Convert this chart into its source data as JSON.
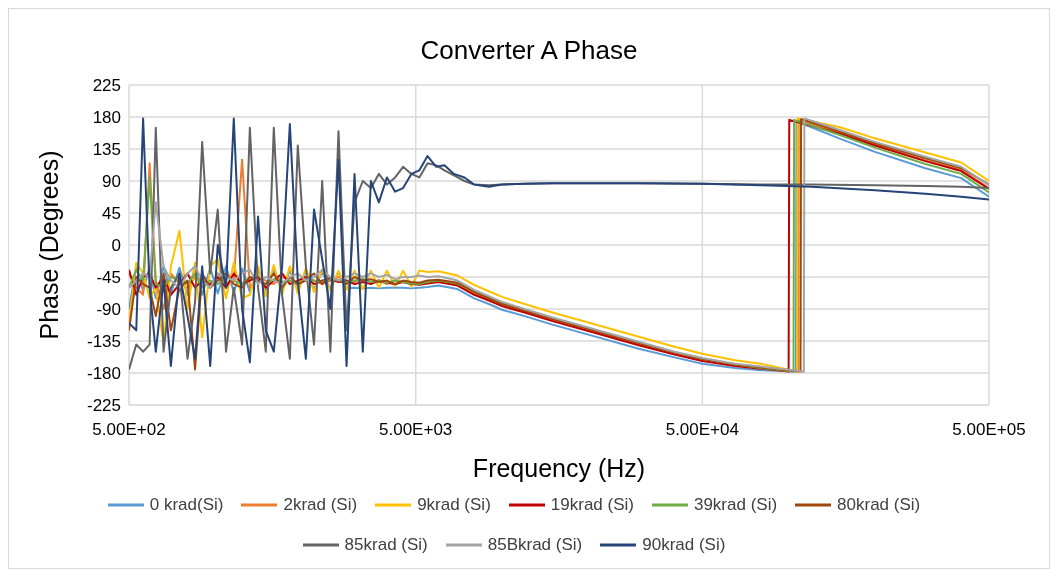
{
  "chart_data": {
    "type": "line",
    "title": "Converter A Phase",
    "xlabel": "Frequency (Hz)",
    "ylabel": "Phase (Degrees)",
    "log": "x",
    "grid": true,
    "legend": "bottom",
    "marker": "none",
    "line_style": "solid",
    "xlim": [
      500,
      500000
    ],
    "xticks": [
      {
        "value": 500,
        "label": "5.00E+02"
      },
      {
        "value": 5000,
        "label": "5.00E+03"
      },
      {
        "value": 50000,
        "label": "5.00E+04"
      },
      {
        "value": 500000,
        "label": "5.00E+05"
      }
    ],
    "ylim": [
      -225,
      225
    ],
    "yticks": [
      -225,
      -180,
      -135,
      -90,
      -45,
      0,
      45,
      90,
      135,
      180,
      225
    ],
    "series": [
      {
        "name": "0 krad(Si)",
        "color": "#5b9bd5",
        "x": [
          500,
          530,
          560,
          590,
          620,
          660,
          700,
          750,
          800,
          850,
          900,
          960,
          1020,
          1090,
          1160,
          1240,
          1320,
          1410,
          1500,
          1600,
          1710,
          1820,
          1940,
          2070,
          2210,
          2360,
          2520,
          2690,
          2870,
          3060,
          3270,
          3490,
          3720,
          3970,
          4240,
          4520,
          4830,
          5150,
          5500,
          6000,
          7000,
          8000,
          9000,
          10000,
          12000,
          15000,
          20000,
          30000,
          40000,
          50000,
          65000,
          80000,
          106000,
          106500,
          150000,
          200000,
          300000,
          400000,
          500000
        ],
        "values": [
          -90,
          -30,
          -65,
          -30,
          -75,
          -30,
          -68,
          -32,
          -70,
          -30,
          -70,
          -32,
          -68,
          -30,
          -66,
          -33,
          -66,
          -34,
          -64,
          -35,
          -63,
          -36,
          -62,
          -37,
          -62,
          -38,
          -62,
          -38,
          -61,
          -60,
          -61,
          -60,
          -61,
          -60,
          -60,
          -60,
          -61,
          -60,
          -59,
          -57,
          -62,
          -75,
          -83,
          -91,
          -100,
          -112,
          -126,
          -146,
          -158,
          -167,
          -173,
          -176,
          -178,
          174,
          150,
          131,
          108,
          94,
          68
        ]
      },
      {
        "name": "2krad (Si)",
        "color": "#ed7d31",
        "x": [
          500,
          530,
          560,
          590,
          620,
          660,
          700,
          750,
          800,
          850,
          900,
          960,
          1020,
          1090,
          1160,
          1240,
          1320,
          1410,
          1500,
          1600,
          1710,
          1820,
          1940,
          2070,
          2210,
          2360,
          2520,
          2690,
          2870,
          3060,
          3270,
          3490,
          3720,
          3970,
          4240,
          4520,
          4830,
          5150,
          5500,
          6000,
          7000,
          8000,
          9000,
          10000,
          12000,
          15000,
          20000,
          30000,
          40000,
          50000,
          65000,
          80000,
          108000,
          108500,
          150000,
          200000,
          300000,
          400000,
          500000
        ],
        "values": [
          -40,
          -60,
          -70,
          115,
          -50,
          -90,
          -40,
          -55,
          -60,
          -45,
          -50,
          -60,
          -40,
          -55,
          -50,
          120,
          -60,
          -45,
          -50,
          -55,
          -45,
          -50,
          -55,
          -45,
          -50,
          -55,
          -50,
          -45,
          -50,
          -52,
          -48,
          -52,
          -50,
          -55,
          -50,
          -52,
          -55,
          -55,
          -52,
          -50,
          -55,
          -68,
          -76,
          -84,
          -93,
          -105,
          -119,
          -139,
          -152,
          -161,
          -168,
          -172,
          -178,
          176,
          158,
          141,
          119,
          105,
          80
        ]
      },
      {
        "name": "9krad (Si)",
        "color": "#ffc000",
        "x": [
          500,
          530,
          560,
          590,
          620,
          660,
          700,
          750,
          800,
          850,
          900,
          960,
          1020,
          1090,
          1160,
          1240,
          1320,
          1410,
          1500,
          1600,
          1710,
          1820,
          1940,
          2070,
          2210,
          2360,
          2520,
          2690,
          2870,
          3060,
          3270,
          3490,
          3720,
          3970,
          4240,
          4520,
          4830,
          5150,
          5500,
          6000,
          7000,
          8000,
          9000,
          10000,
          12000,
          15000,
          20000,
          30000,
          40000,
          50000,
          65000,
          80000,
          107000,
          107500,
          150000,
          200000,
          300000,
          400000,
          500000
        ],
        "values": [
          -110,
          -25,
          -40,
          -75,
          -60,
          -140,
          -30,
          20,
          -90,
          -25,
          -130,
          -30,
          -20,
          -75,
          -25,
          -75,
          -70,
          -30,
          -72,
          -28,
          -70,
          -30,
          -68,
          -32,
          -66,
          -34,
          -64,
          -36,
          -63,
          -36,
          -62,
          -36,
          -60,
          -36,
          -58,
          -36,
          -58,
          -36,
          -38,
          -37,
          -43,
          -56,
          -65,
          -73,
          -83,
          -95,
          -109,
          -129,
          -143,
          -153,
          -162,
          -167,
          -178,
          178,
          166,
          150,
          130,
          116,
          90
        ]
      },
      {
        "name": "19krad (Si)",
        "color": "#c00000",
        "x": [
          500,
          530,
          560,
          590,
          620,
          660,
          700,
          750,
          800,
          850,
          900,
          960,
          1020,
          1090,
          1160,
          1240,
          1320,
          1410,
          1500,
          1600,
          1710,
          1820,
          1940,
          2070,
          2210,
          2360,
          2520,
          2690,
          2870,
          3060,
          3270,
          3490,
          3720,
          3970,
          4240,
          4520,
          4830,
          5150,
          5500,
          6000,
          7000,
          8000,
          9000,
          10000,
          12000,
          15000,
          20000,
          30000,
          40000,
          50000,
          65000,
          80000,
          100000,
          100500,
          150000,
          200000,
          300000,
          400000,
          500000
        ],
        "values": [
          -35,
          -70,
          -45,
          -40,
          -60,
          -45,
          -70,
          -55,
          -40,
          -60,
          -50,
          -55,
          -45,
          -60,
          -40,
          -55,
          -50,
          -45,
          -60,
          -50,
          -40,
          -55,
          -50,
          -45,
          -55,
          -50,
          -48,
          -52,
          -50,
          -55,
          -52,
          -55,
          -50,
          -53,
          -55,
          -52,
          -55,
          -56,
          -54,
          -52,
          -57,
          -70,
          -78,
          -86,
          -95,
          -107,
          -121,
          -141,
          -154,
          -163,
          -170,
          -174,
          -178,
          176,
          157,
          140,
          118,
          104,
          79
        ]
      },
      {
        "name": "39krad (Si)",
        "color": "#70ad47",
        "x": [
          500,
          530,
          560,
          590,
          620,
          660,
          700,
          750,
          800,
          850,
          900,
          960,
          1020,
          1090,
          1160,
          1240,
          1320,
          1410,
          1500,
          1600,
          1710,
          1820,
          1940,
          2070,
          2210,
          2360,
          2520,
          2690,
          2870,
          3060,
          3270,
          3490,
          3720,
          3970,
          4240,
          4520,
          4830,
          5150,
          5500,
          6000,
          7000,
          8000,
          9000,
          10000,
          12000,
          15000,
          20000,
          30000,
          40000,
          50000,
          65000,
          80000,
          104000,
          104500,
          150000,
          200000,
          300000,
          400000,
          500000
        ],
        "values": [
          -60,
          -35,
          -50,
          95,
          -55,
          -60,
          -45,
          -50,
          -55,
          -40,
          -60,
          -50,
          -55,
          -45,
          -50,
          -55,
          -45,
          -50,
          -55,
          -48,
          -52,
          -50,
          -55,
          -48,
          -50,
          -52,
          -48,
          -50,
          -52,
          -50,
          -48,
          -52,
          -50,
          -53,
          -50,
          -52,
          -54,
          -55,
          -52,
          -50,
          -54,
          -66,
          -74,
          -82,
          -91,
          -103,
          -117,
          -137,
          -151,
          -160,
          -168,
          -173,
          -178,
          176,
          155,
          137,
          114,
          100,
          74
        ]
      },
      {
        "name": "80krad (Si)",
        "color": "#9e480e",
        "x": [
          500,
          530,
          560,
          590,
          620,
          660,
          700,
          750,
          800,
          850,
          900,
          960,
          1020,
          1090,
          1160,
          1240,
          1320,
          1410,
          1500,
          1600,
          1710,
          1820,
          1940,
          2070,
          2210,
          2360,
          2520,
          2690,
          2870,
          3060,
          3270,
          3490,
          3720,
          3970,
          4240,
          4520,
          4830,
          5150,
          5500,
          6000,
          7000,
          8000,
          9000,
          10000,
          12000,
          15000,
          20000,
          30000,
          40000,
          50000,
          65000,
          80000,
          110000,
          110500,
          150000,
          200000,
          300000,
          400000,
          500000
        ],
        "values": [
          -120,
          -45,
          -55,
          -60,
          -100,
          -40,
          -120,
          -60,
          -50,
          -175,
          -40,
          -60,
          -50,
          -40,
          -55,
          -60,
          -45,
          -50,
          -55,
          -40,
          -60,
          -45,
          -55,
          -50,
          -40,
          -55,
          -45,
          -50,
          -55,
          -45,
          -50,
          -48,
          -52,
          -50,
          -55,
          -50,
          -52,
          -53,
          -50,
          -49,
          -53,
          -66,
          -75,
          -83,
          -92,
          -104,
          -118,
          -138,
          -151,
          -160,
          -168,
          -172,
          -178,
          177,
          160,
          143,
          122,
          108,
          85
        ]
      },
      {
        "name": "85krad (Si)",
        "color": "#636363",
        "x": [
          500,
          530,
          560,
          590,
          620,
          660,
          700,
          750,
          800,
          850,
          900,
          960,
          1020,
          1090,
          1160,
          1240,
          1320,
          1410,
          1500,
          1600,
          1710,
          1820,
          1940,
          2070,
          2210,
          2360,
          2520,
          2690,
          2870,
          3060,
          3270,
          3490,
          3720,
          3970,
          4240,
          4520,
          4830,
          5150,
          5500,
          5900,
          6300,
          6800,
          7400,
          8000,
          9000,
          10000,
          12000,
          15000,
          20000,
          30000,
          50000,
          80000,
          120000,
          200000,
          300000,
          400000,
          500000
        ],
        "values": [
          -175,
          -140,
          -150,
          -140,
          165,
          -150,
          -60,
          -40,
          -160,
          -80,
          145,
          -40,
          50,
          -150,
          -60,
          -140,
          165,
          -60,
          -150,
          165,
          -70,
          -160,
          140,
          -30,
          -140,
          90,
          -150,
          160,
          -120,
          60,
          90,
          80,
          100,
          85,
          95,
          110,
          100,
          95,
          115,
          112,
          105,
          98,
          90,
          85,
          84,
          85,
          86,
          87,
          87,
          87,
          86,
          85,
          85,
          84,
          83,
          82,
          80
        ]
      },
      {
        "name": "85Bkrad (Si)",
        "color": "#a5a5a5",
        "x": [
          500,
          530,
          560,
          590,
          620,
          660,
          700,
          750,
          800,
          850,
          900,
          960,
          1020,
          1090,
          1160,
          1240,
          1320,
          1410,
          1500,
          1600,
          1710,
          1820,
          1940,
          2070,
          2210,
          2360,
          2520,
          2690,
          2870,
          3060,
          3270,
          3490,
          3720,
          3970,
          4240,
          4520,
          4830,
          5150,
          5500,
          6000,
          7000,
          8000,
          9000,
          10000,
          12000,
          15000,
          20000,
          30000,
          40000,
          50000,
          65000,
          80000,
          113000,
          113500,
          150000,
          200000,
          300000,
          400000,
          500000
        ],
        "values": [
          -60,
          -50,
          -40,
          -45,
          60,
          -30,
          -50,
          -60,
          -40,
          -30,
          -50,
          -60,
          -40,
          -45,
          -50,
          -40,
          -35,
          -55,
          -45,
          -50,
          -55,
          -45,
          -40,
          -50,
          -45,
          -35,
          -45,
          -50,
          -45,
          -40,
          -45,
          -40,
          -45,
          -42,
          -48,
          -45,
          -45,
          -43,
          -45,
          -44,
          -50,
          -63,
          -72,
          -80,
          -90,
          -102,
          -116,
          -136,
          -150,
          -159,
          -167,
          -171,
          -178,
          178,
          162,
          145,
          124,
          110,
          84
        ]
      },
      {
        "name": "90krad (Si)",
        "color": "#264478",
        "x": [
          500,
          530,
          560,
          590,
          620,
          660,
          700,
          750,
          800,
          850,
          900,
          960,
          1020,
          1090,
          1160,
          1240,
          1320,
          1410,
          1500,
          1600,
          1710,
          1820,
          1940,
          2070,
          2210,
          2360,
          2520,
          2690,
          2870,
          3060,
          3270,
          3490,
          3720,
          3970,
          4240,
          4520,
          4830,
          5150,
          5500,
          5900,
          6300,
          6800,
          7400,
          8000,
          9000,
          10000,
          12000,
          15000,
          20000,
          30000,
          50000,
          80000,
          120000,
          200000,
          300000,
          400000,
          500000
        ],
        "values": [
          -110,
          -120,
          178,
          -60,
          -150,
          -50,
          -170,
          -40,
          -100,
          -160,
          -30,
          -170,
          0,
          -60,
          178,
          -90,
          -165,
          40,
          -120,
          -150,
          -30,
          170,
          -50,
          -160,
          50,
          -20,
          -90,
          120,
          -170,
          100,
          -150,
          90,
          60,
          95,
          75,
          80,
          100,
          105,
          125,
          110,
          112,
          100,
          95,
          85,
          82,
          85,
          86,
          87,
          87,
          87,
          86,
          84,
          82,
          77,
          72,
          68,
          64
        ]
      }
    ]
  }
}
